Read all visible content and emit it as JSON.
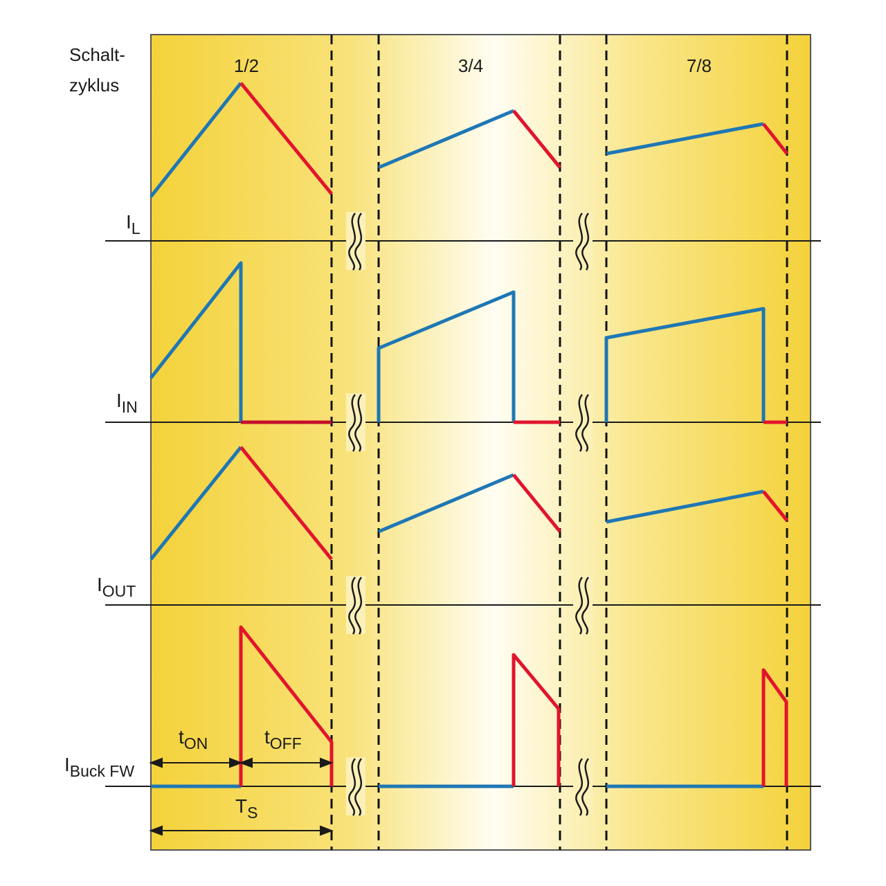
{
  "header": {
    "line1": "Schalt-",
    "line2": "zyklus"
  },
  "duty_cycles": [
    "1/2",
    "3/4",
    "7/8"
  ],
  "signals": {
    "il": {
      "main": "I",
      "sub": "L"
    },
    "iin": {
      "main": "I",
      "sub": "IN"
    },
    "iout": {
      "main": "I",
      "sub": "OUT"
    },
    "ibuck": {
      "main": "I",
      "sub": "Buck FW"
    }
  },
  "timing": {
    "ton": {
      "main": "t",
      "sub": "ON"
    },
    "toff": {
      "main": "t",
      "sub": "OFF"
    },
    "ts": {
      "main": "T",
      "sub": "S"
    }
  },
  "colors": {
    "on_phase": "#1f77b4",
    "off_phase": "#e2142d",
    "background_edge": "#f5d63a",
    "background_center": "#fffdf0",
    "axis": "#1a1a1a"
  }
}
